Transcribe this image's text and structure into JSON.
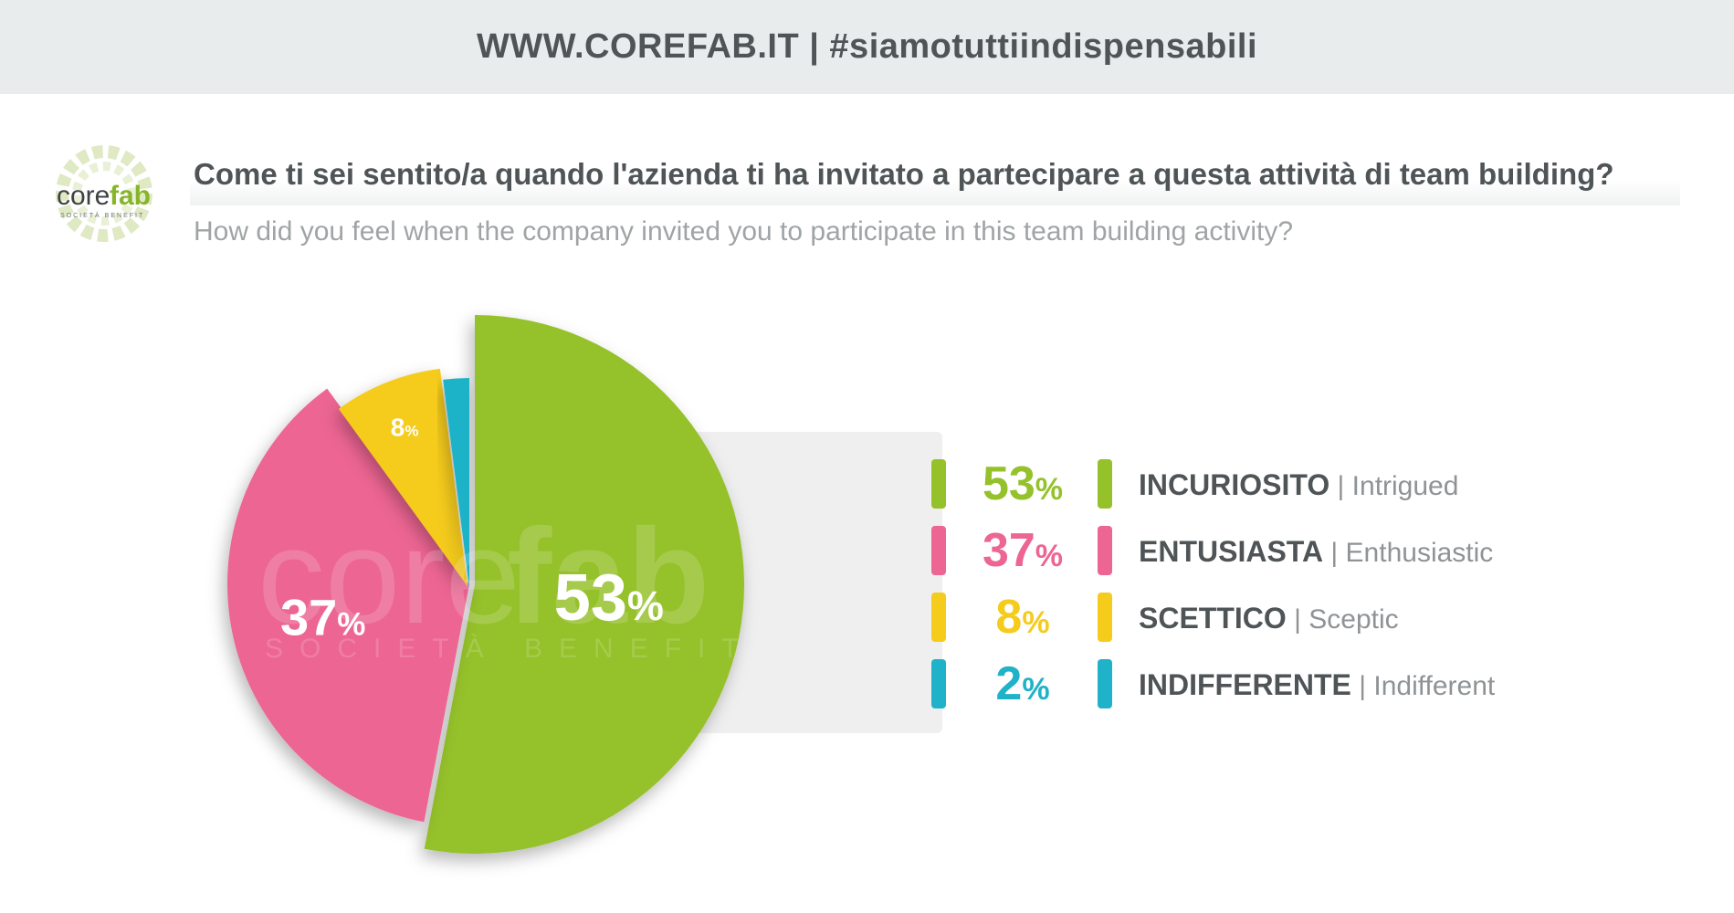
{
  "header": {
    "text": "WWW.COREFAB.IT | #siamotuttiindispensabili"
  },
  "logo": {
    "text_core": "core",
    "text_fab": "fab",
    "subtitle": "SOCIETÀ BENEFIT"
  },
  "watermark": {
    "text_core": "core",
    "text_fab": "fab",
    "subtitle": "SOCIETÀ BENEFIT"
  },
  "question": {
    "it": "Come ti sei sentito/a quando l'azienda ti ha invitato a partecipare a questa attività di team building?",
    "en": "How did you feel when the company invited you to participate in this team building activity?"
  },
  "colors": {
    "green": "#95c12b",
    "pink": "#ed6593",
    "yellow": "#f5cb1c",
    "teal": "#1fb2c8"
  },
  "chart_data": {
    "type": "pie",
    "title": "",
    "slices": [
      {
        "label": "INCURIOSITO",
        "label_en": "Intrigued",
        "value": 53,
        "value_label": "53",
        "color": "#95c12b"
      },
      {
        "label": "ENTUSIASTA",
        "label_en": "Enthusiastic",
        "value": 37,
        "value_label": "37",
        "color": "#ed6593"
      },
      {
        "label": "SCETTICO",
        "label_en": "Sceptic",
        "value": 8,
        "value_label": "8",
        "color": "#f5cb1c"
      },
      {
        "label": "INDIFFERENTE",
        "label_en": "Indifferent",
        "value": 2,
        "value_label": "2",
        "color": "#1fb2c8"
      }
    ],
    "unit": "%",
    "legend_position": "right"
  }
}
